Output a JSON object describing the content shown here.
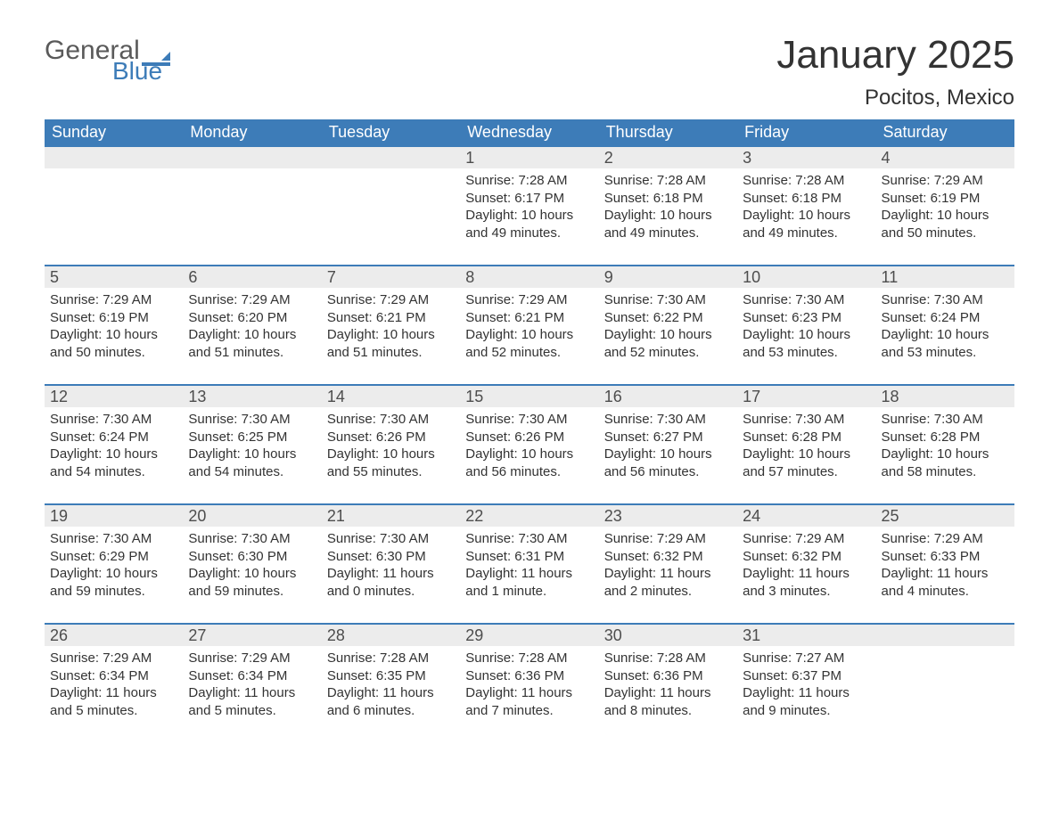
{
  "logo": {
    "general": "General",
    "blue": "Blue",
    "flag_color": "#3d7cb8"
  },
  "title": "January 2025",
  "subtitle": "Pocitos, Mexico",
  "day_headers": [
    "Sunday",
    "Monday",
    "Tuesday",
    "Wednesday",
    "Thursday",
    "Friday",
    "Saturday"
  ],
  "colors": {
    "header_bg": "#3d7cb8",
    "header_text": "#ffffff",
    "daynum_bg": "#ececec",
    "daynum_border": "#3d7cb8",
    "body_text": "#333333",
    "page_bg": "#ffffff"
  },
  "weeks": [
    [
      {
        "num": "",
        "lines": []
      },
      {
        "num": "",
        "lines": []
      },
      {
        "num": "",
        "lines": []
      },
      {
        "num": "1",
        "lines": [
          "Sunrise: 7:28 AM",
          "Sunset: 6:17 PM",
          "Daylight: 10 hours and 49 minutes."
        ]
      },
      {
        "num": "2",
        "lines": [
          "Sunrise: 7:28 AM",
          "Sunset: 6:18 PM",
          "Daylight: 10 hours and 49 minutes."
        ]
      },
      {
        "num": "3",
        "lines": [
          "Sunrise: 7:28 AM",
          "Sunset: 6:18 PM",
          "Daylight: 10 hours and 49 minutes."
        ]
      },
      {
        "num": "4",
        "lines": [
          "Sunrise: 7:29 AM",
          "Sunset: 6:19 PM",
          "Daylight: 10 hours and 50 minutes."
        ]
      }
    ],
    [
      {
        "num": "5",
        "lines": [
          "Sunrise: 7:29 AM",
          "Sunset: 6:19 PM",
          "Daylight: 10 hours and 50 minutes."
        ]
      },
      {
        "num": "6",
        "lines": [
          "Sunrise: 7:29 AM",
          "Sunset: 6:20 PM",
          "Daylight: 10 hours and 51 minutes."
        ]
      },
      {
        "num": "7",
        "lines": [
          "Sunrise: 7:29 AM",
          "Sunset: 6:21 PM",
          "Daylight: 10 hours and 51 minutes."
        ]
      },
      {
        "num": "8",
        "lines": [
          "Sunrise: 7:29 AM",
          "Sunset: 6:21 PM",
          "Daylight: 10 hours and 52 minutes."
        ]
      },
      {
        "num": "9",
        "lines": [
          "Sunrise: 7:30 AM",
          "Sunset: 6:22 PM",
          "Daylight: 10 hours and 52 minutes."
        ]
      },
      {
        "num": "10",
        "lines": [
          "Sunrise: 7:30 AM",
          "Sunset: 6:23 PM",
          "Daylight: 10 hours and 53 minutes."
        ]
      },
      {
        "num": "11",
        "lines": [
          "Sunrise: 7:30 AM",
          "Sunset: 6:24 PM",
          "Daylight: 10 hours and 53 minutes."
        ]
      }
    ],
    [
      {
        "num": "12",
        "lines": [
          "Sunrise: 7:30 AM",
          "Sunset: 6:24 PM",
          "Daylight: 10 hours and 54 minutes."
        ]
      },
      {
        "num": "13",
        "lines": [
          "Sunrise: 7:30 AM",
          "Sunset: 6:25 PM",
          "Daylight: 10 hours and 54 minutes."
        ]
      },
      {
        "num": "14",
        "lines": [
          "Sunrise: 7:30 AM",
          "Sunset: 6:26 PM",
          "Daylight: 10 hours and 55 minutes."
        ]
      },
      {
        "num": "15",
        "lines": [
          "Sunrise: 7:30 AM",
          "Sunset: 6:26 PM",
          "Daylight: 10 hours and 56 minutes."
        ]
      },
      {
        "num": "16",
        "lines": [
          "Sunrise: 7:30 AM",
          "Sunset: 6:27 PM",
          "Daylight: 10 hours and 56 minutes."
        ]
      },
      {
        "num": "17",
        "lines": [
          "Sunrise: 7:30 AM",
          "Sunset: 6:28 PM",
          "Daylight: 10 hours and 57 minutes."
        ]
      },
      {
        "num": "18",
        "lines": [
          "Sunrise: 7:30 AM",
          "Sunset: 6:28 PM",
          "Daylight: 10 hours and 58 minutes."
        ]
      }
    ],
    [
      {
        "num": "19",
        "lines": [
          "Sunrise: 7:30 AM",
          "Sunset: 6:29 PM",
          "Daylight: 10 hours and 59 minutes."
        ]
      },
      {
        "num": "20",
        "lines": [
          "Sunrise: 7:30 AM",
          "Sunset: 6:30 PM",
          "Daylight: 10 hours and 59 minutes."
        ]
      },
      {
        "num": "21",
        "lines": [
          "Sunrise: 7:30 AM",
          "Sunset: 6:30 PM",
          "Daylight: 11 hours and 0 minutes."
        ]
      },
      {
        "num": "22",
        "lines": [
          "Sunrise: 7:30 AM",
          "Sunset: 6:31 PM",
          "Daylight: 11 hours and 1 minute."
        ]
      },
      {
        "num": "23",
        "lines": [
          "Sunrise: 7:29 AM",
          "Sunset: 6:32 PM",
          "Daylight: 11 hours and 2 minutes."
        ]
      },
      {
        "num": "24",
        "lines": [
          "Sunrise: 7:29 AM",
          "Sunset: 6:32 PM",
          "Daylight: 11 hours and 3 minutes."
        ]
      },
      {
        "num": "25",
        "lines": [
          "Sunrise: 7:29 AM",
          "Sunset: 6:33 PM",
          "Daylight: 11 hours and 4 minutes."
        ]
      }
    ],
    [
      {
        "num": "26",
        "lines": [
          "Sunrise: 7:29 AM",
          "Sunset: 6:34 PM",
          "Daylight: 11 hours and 5 minutes."
        ]
      },
      {
        "num": "27",
        "lines": [
          "Sunrise: 7:29 AM",
          "Sunset: 6:34 PM",
          "Daylight: 11 hours and 5 minutes."
        ]
      },
      {
        "num": "28",
        "lines": [
          "Sunrise: 7:28 AM",
          "Sunset: 6:35 PM",
          "Daylight: 11 hours and 6 minutes."
        ]
      },
      {
        "num": "29",
        "lines": [
          "Sunrise: 7:28 AM",
          "Sunset: 6:36 PM",
          "Daylight: 11 hours and 7 minutes."
        ]
      },
      {
        "num": "30",
        "lines": [
          "Sunrise: 7:28 AM",
          "Sunset: 6:36 PM",
          "Daylight: 11 hours and 8 minutes."
        ]
      },
      {
        "num": "31",
        "lines": [
          "Sunrise: 7:27 AM",
          "Sunset: 6:37 PM",
          "Daylight: 11 hours and 9 minutes."
        ]
      },
      {
        "num": "",
        "lines": []
      }
    ]
  ]
}
